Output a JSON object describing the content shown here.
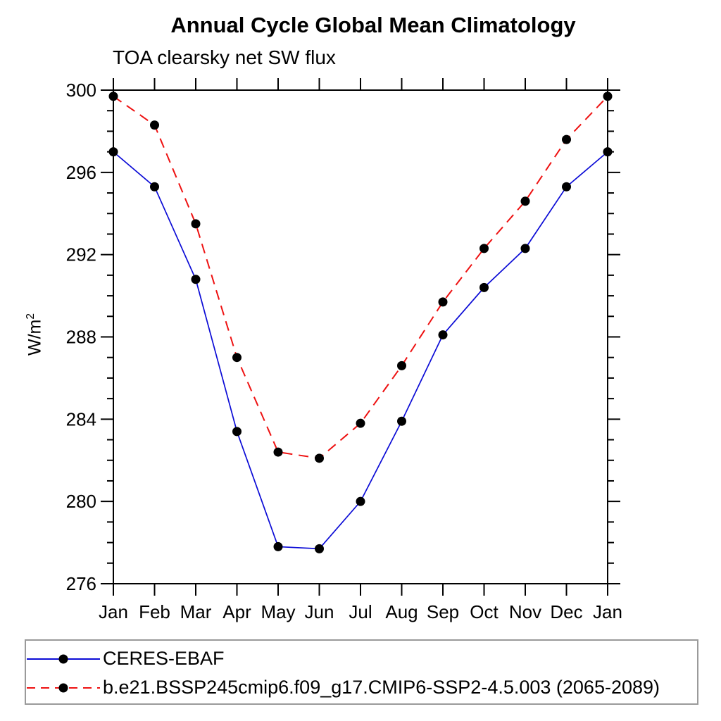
{
  "chart": {
    "title": "Annual Cycle Global Mean Climatology",
    "subtitle": "TOA clearsky net SW flux",
    "ylabel_base": "W/m",
    "ylabel_exponent": "2"
  },
  "legend": {
    "items": [
      {
        "label": "CERES-EBAF",
        "color": "#0b0bd6",
        "style": "solid"
      },
      {
        "label": "b.e21.BSSP245cmip6.f09_g17.CMIP6-SSP2-4.5.003 (2065-2089)",
        "color": "#ee1111",
        "style": "dashed"
      }
    ]
  },
  "chart_data": {
    "type": "line",
    "title": "Annual Cycle Global Mean Climatology",
    "subtitle": "TOA clearsky net SW flux",
    "ylabel": "W/m²",
    "xlabel": "",
    "categories": [
      "Jan",
      "Feb",
      "Mar",
      "Apr",
      "May",
      "Jun",
      "Jul",
      "Aug",
      "Sep",
      "Oct",
      "Nov",
      "Dec",
      "Jan"
    ],
    "ylim": [
      276,
      300
    ],
    "yticks": [
      276,
      280,
      284,
      288,
      292,
      296,
      300
    ],
    "minor_tick_step": 1,
    "grid": false,
    "legend_position": "bottom",
    "marker_color": "#000000",
    "series": [
      {
        "name": "CERES-EBAF",
        "color": "#0b0bd6",
        "line_style": "solid",
        "marker": "circle",
        "values": [
          297.0,
          295.3,
          290.8,
          283.4,
          277.8,
          277.7,
          280.0,
          283.9,
          288.1,
          290.4,
          292.3,
          295.3,
          297.0
        ]
      },
      {
        "name": "b.e21.BSSP245cmip6.f09_g17.CMIP6-SSP2-4.5.003 (2065-2089)",
        "color": "#ee1111",
        "line_style": "dashed",
        "marker": "circle",
        "values": [
          299.7,
          298.3,
          293.5,
          287.0,
          282.4,
          282.1,
          283.8,
          286.6,
          289.7,
          292.3,
          294.6,
          297.6,
          299.7
        ]
      }
    ]
  }
}
